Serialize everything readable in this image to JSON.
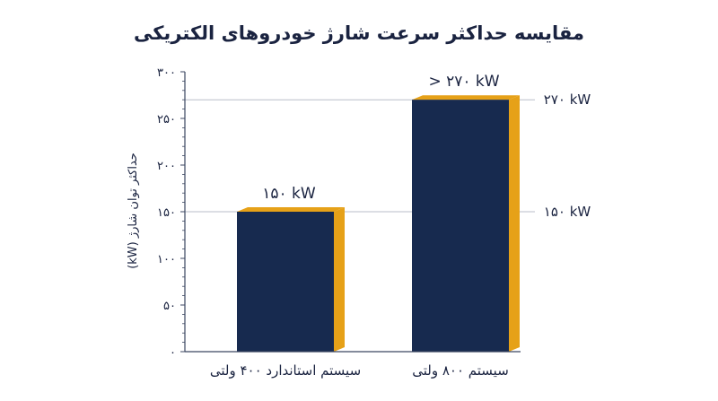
{
  "chart_data": {
    "type": "bar",
    "title": "مقایسه حداکثر سرعت شارژ خودروهای الکتریکی",
    "ylabel": "حداکثر توان شارژ (kW)",
    "xlabel": "",
    "ylim": [
      0,
      300
    ],
    "yticks": [
      0,
      50,
      100,
      150,
      200,
      250,
      300
    ],
    "ytick_labels": [
      "۰",
      "۵۰",
      "۱۰۰",
      "۱۵۰",
      "۲۰۰",
      "۲۵۰",
      "۳۰۰"
    ],
    "categories": [
      "سیستم استاندارد ۴۰۰ ولتی",
      "سیستم ۸۰۰ ولتی"
    ],
    "values": [
      150,
      270
    ],
    "data_labels": [
      "۱۵۰ kW",
      "> ۲۷۰ kW"
    ],
    "reference_lines": [
      {
        "value": 150,
        "label": "۱۵۰ kW"
      },
      {
        "value": 270,
        "label": "۲۷۰ kW"
      }
    ],
    "grid": false,
    "legend": "none",
    "colors": {
      "bar": "#172a4f",
      "bar_side": "#e6a118",
      "axis": "#3b4660",
      "reference_line": "#b9bec8",
      "text": "#1a2340"
    }
  }
}
